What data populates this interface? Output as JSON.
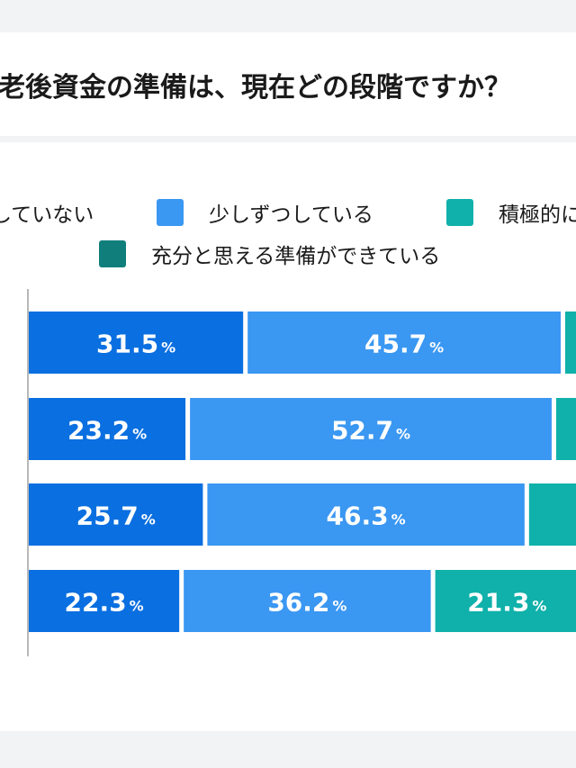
{
  "header": {
    "title": "老後資金の準備は、現在どの段階ですか？"
  },
  "colors": {
    "not_prepared": "#0a6fe0",
    "little_by_little": "#3a97f2",
    "actively": "#0fb1aa",
    "sufficiently": "#107f7c"
  },
  "legend": [
    {
      "label": "していない",
      "color": "#0a6fe0"
    },
    {
      "label": "少しずつしている",
      "color": "#3a97f2"
    },
    {
      "label": "積極的に",
      "color": "#0fb1aa"
    },
    {
      "label": "充分と思える準備ができている",
      "color": "#107f7c"
    }
  ],
  "chart_data": {
    "type": "bar",
    "orientation": "horizontal",
    "stacked": true,
    "value_unit": "%",
    "series": [
      {
        "name": "していない",
        "values": [
          31.5,
          23.2,
          25.7,
          22.3
        ]
      },
      {
        "name": "少しずつしている",
        "values": [
          45.7,
          52.7,
          46.3,
          36.2
        ]
      },
      {
        "name": "積極的に",
        "values": [
          null,
          null,
          null,
          21.3
        ]
      }
    ],
    "xlim": [
      0,
      100
    ],
    "legend_position": "top"
  }
}
